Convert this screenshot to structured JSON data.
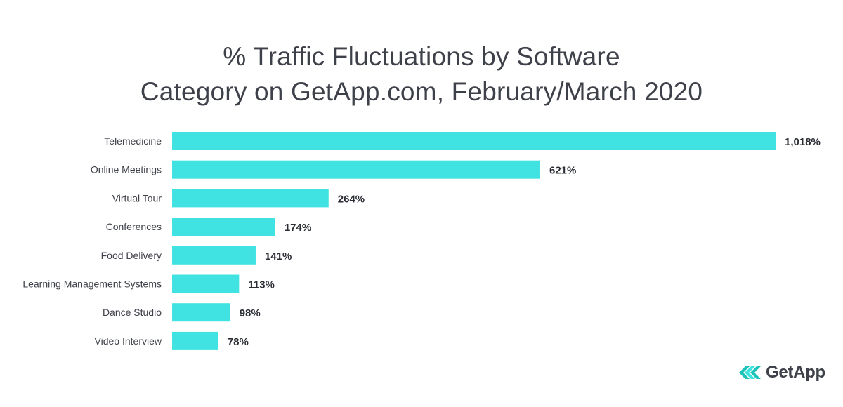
{
  "chart_data": {
    "type": "bar",
    "orientation": "horizontal",
    "title_line1": "% Traffic Fluctuations by Software",
    "title_line2": "Category on GetApp.com, February/March 2020",
    "categories": [
      "Telemedicine",
      "Online Meetings",
      "Virtual Tour",
      "Conferences",
      "Food Delivery",
      "Learning Management Systems",
      "Dance Studio",
      "Video Interview"
    ],
    "values": [
      1018,
      621,
      264,
      174,
      141,
      113,
      98,
      78
    ],
    "value_labels": [
      "1,018%",
      "621%",
      "264%",
      "174%",
      "141%",
      "113%",
      "98%",
      "78%"
    ],
    "xlim": [
      0,
      1018
    ],
    "grid": false,
    "legend": "none",
    "bar_color": "#40e3e2"
  },
  "logo": {
    "text": "GetApp",
    "icon": "getapp-chevrons-icon",
    "colors": [
      "#40e3e2",
      "#1cc3b8"
    ]
  }
}
